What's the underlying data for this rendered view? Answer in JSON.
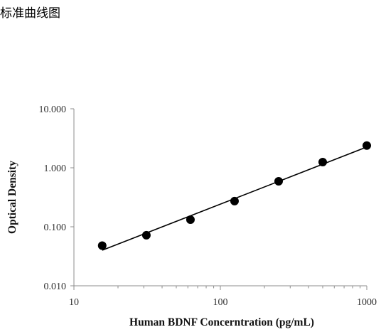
{
  "header": {
    "title": "标准曲线图"
  },
  "chart_data": {
    "type": "scatter",
    "xlabel": "Human BDNF Concerntration (pg/mL)",
    "ylabel": "Optical Density",
    "xscale": "log",
    "yscale": "log",
    "xlim": [
      10,
      1000
    ],
    "ylim": [
      0.01,
      10
    ],
    "xticks": [
      "10",
      "100",
      "1000"
    ],
    "yticks": [
      "10.000",
      "1.000",
      "0.100",
      "0.010"
    ],
    "grid": false,
    "legend": "none",
    "marker_color": "#000000",
    "series": [
      {
        "x": [
          15.6,
          31.25,
          62.5,
          125,
          250,
          500,
          1000
        ],
        "y": [
          0.048,
          0.072,
          0.132,
          0.272,
          0.59,
          1.25,
          2.38
        ]
      }
    ],
    "trendline": {
      "type": "power",
      "x_range": [
        15.6,
        1000
      ],
      "y_range": [
        0.04,
        2.25
      ]
    }
  }
}
